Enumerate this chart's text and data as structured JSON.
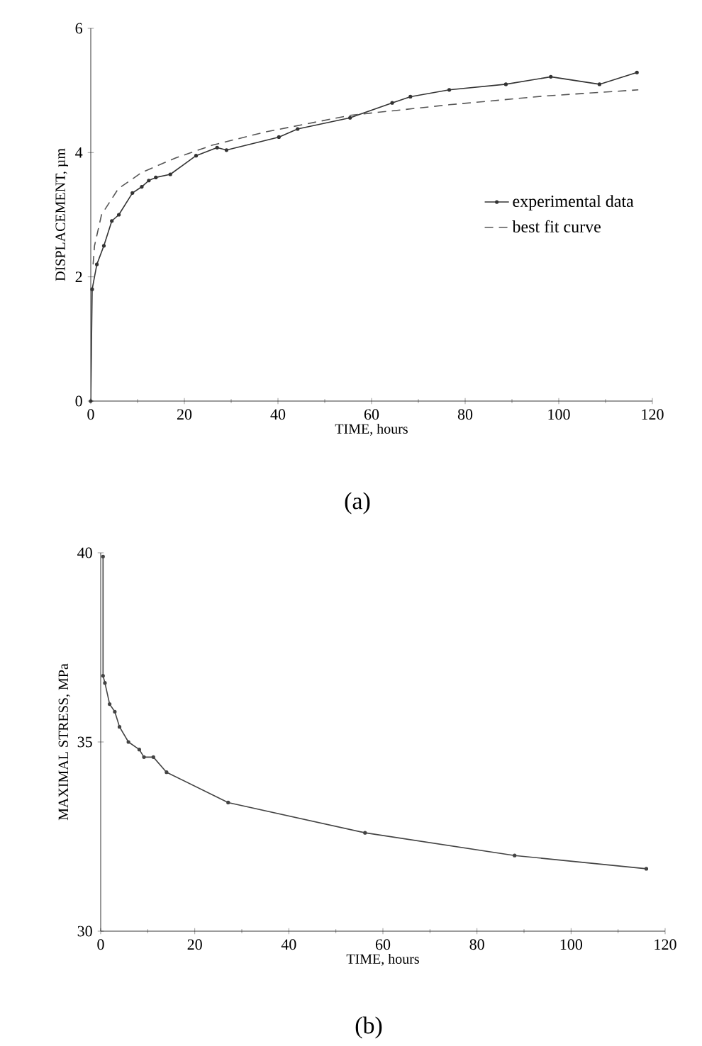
{
  "chart_data": [
    {
      "type": "line",
      "xlabel": "TIME, hours",
      "ylabel": "DISPLACEMENT, µm",
      "annotations": [
        "(a)"
      ],
      "xlim": [
        0,
        120
      ],
      "ylim": [
        0,
        6
      ],
      "xticks": [
        0,
        20,
        40,
        60,
        80,
        100,
        120
      ],
      "yticks": [
        0,
        2,
        4,
        6
      ],
      "legend": "right",
      "series": [
        {
          "name": "experimental data",
          "color": "#333333",
          "line_style": "solid",
          "marker": "circle",
          "x": [
            0,
            0.3,
            1.3,
            2.8,
            4.5,
            6,
            8.9,
            10.9,
            12.4,
            13.9,
            17,
            22.5,
            27,
            29,
            40.2,
            44.2,
            55.4,
            64.4,
            68.3,
            76.6,
            88.7,
            98.3,
            108.7,
            116.7
          ],
          "values": [
            0,
            1.8,
            2.2,
            2.5,
            2.9,
            3.0,
            3.35,
            3.45,
            3.55,
            3.6,
            3.65,
            3.95,
            4.08,
            4.04,
            4.25,
            4.38,
            4.56,
            4.8,
            4.9,
            5.01,
            5.1,
            5.22,
            5.1,
            5.29
          ]
        },
        {
          "name": "best fit curve",
          "color": "#555555",
          "line_style": "dashed",
          "marker": "none",
          "x": [
            0.5,
            0.8,
            2.3,
            5.9,
            10.9,
            18,
            26,
            37.2,
            55.4,
            76.6,
            96.8,
            117
          ],
          "values": [
            2.2,
            2.5,
            3.0,
            3.42,
            3.68,
            3.91,
            4.12,
            4.33,
            4.6,
            4.77,
            4.91,
            5.01
          ]
        }
      ]
    },
    {
      "type": "line",
      "xlabel": "TIME, hours",
      "ylabel": "MAXIMAL STRESS, MPa",
      "annotations": [
        "(b)"
      ],
      "xlim": [
        0,
        120
      ],
      "ylim": [
        30,
        40
      ],
      "xticks": [
        0,
        20,
        40,
        60,
        80,
        100,
        120
      ],
      "yticks": [
        30,
        35,
        40
      ],
      "series": [
        {
          "color": "#444444",
          "line_style": "solid",
          "marker": "circle",
          "x": [
            0.5,
            0.5,
            0.9,
            1.9,
            3,
            4,
            5.9,
            8.2,
            9.2,
            11.2,
            14,
            27.1,
            56.2,
            88,
            116
          ],
          "values": [
            39.9,
            36.75,
            36.56,
            36.0,
            35.8,
            35.4,
            35.0,
            34.8,
            34.6,
            34.6,
            34.2,
            33.4,
            32.6,
            32.0,
            31.65
          ]
        }
      ]
    }
  ]
}
